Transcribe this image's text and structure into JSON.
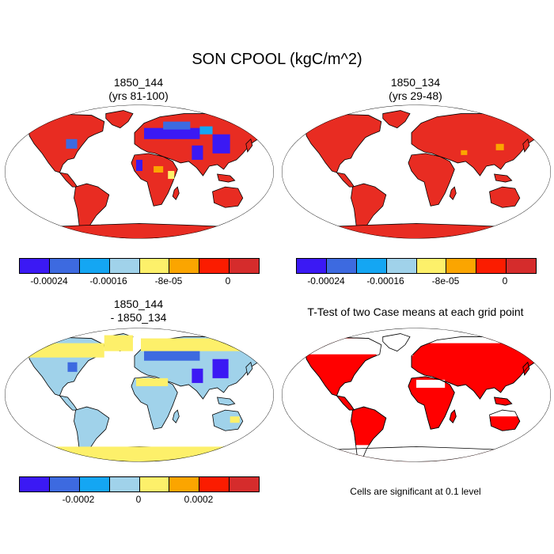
{
  "figure": {
    "title": "SON CPOOL (kgC/m^2)",
    "note": "Cells are significant at 0.1 level"
  },
  "panels": [
    {
      "id": "1850_144",
      "line1": "1850_144",
      "line2": "(yrs 81-100)",
      "dominant_fill": "#e82c22"
    },
    {
      "id": "1850_134",
      "line1": "1850_134",
      "line2": "(yrs 29-48)",
      "dominant_fill": "#e82c22"
    },
    {
      "id": "diff",
      "line1": "1850_144",
      "line2": "- 1850_134",
      "dominant_fill": "#a0d2ea"
    },
    {
      "id": "ttest",
      "line1": "T-Test of two Case means at each grid point",
      "line2": "",
      "dominant_fill": "#ff0000"
    }
  ],
  "colorbars": {
    "top": {
      "colors": [
        "#3b19f4",
        "#3d6ae0",
        "#14a6f3",
        "#a0d2ea",
        "#fdf06a",
        "#fba500",
        "#fb1c00",
        "#d52c2c"
      ],
      "labels": [
        "-0.00024",
        "-0.00016",
        "-8e-05",
        "0"
      ]
    },
    "diff": {
      "colors": [
        "#3b19f4",
        "#3d6ae0",
        "#14a6f3",
        "#a0d2ea",
        "#fdf06a",
        "#fba500",
        "#fb1c00",
        "#d52c2c"
      ],
      "labels": [
        "-0.0002",
        "0",
        "0.0002"
      ]
    }
  }
}
